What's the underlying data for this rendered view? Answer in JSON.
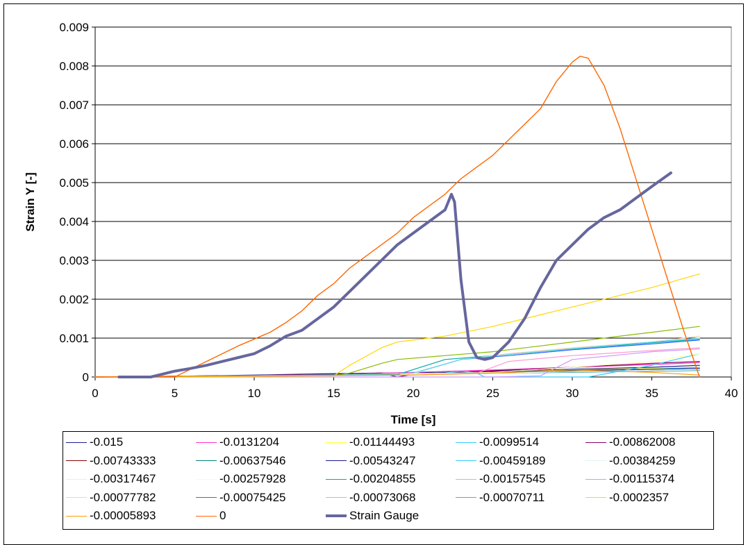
{
  "chart_data": {
    "type": "line",
    "title": "",
    "xlabel": "Time [s]",
    "ylabel": "Strain Y [-]",
    "xlim": [
      0,
      40
    ],
    "ylim": [
      0,
      0.009
    ],
    "x_ticks": [
      "0",
      "5",
      "10",
      "15",
      "20",
      "25",
      "30",
      "35",
      "40"
    ],
    "y_ticks": [
      "0",
      "0.001",
      "0.002",
      "0.003",
      "0.004",
      "0.005",
      "0.006",
      "0.007",
      "0.008",
      "0.009"
    ],
    "grid": "horizontal",
    "legend_position": "bottom",
    "series": [
      {
        "name": "-0.015",
        "color": "#1a1a8c",
        "width": 1.2,
        "points": [
          [
            0,
            0
          ],
          [
            5,
            2e-05
          ],
          [
            10,
            5e-05
          ],
          [
            14,
            8e-05
          ],
          [
            18,
            0.0001
          ],
          [
            22,
            0.00012
          ],
          [
            25,
            0.00015
          ],
          [
            30,
            0.0002
          ],
          [
            35,
            0.00025
          ],
          [
            38,
            0.0003
          ]
        ]
      },
      {
        "name": "-0.0131204",
        "color": "#ff33cc",
        "width": 1.2,
        "points": [
          [
            0,
            0
          ],
          [
            10,
            4e-05
          ],
          [
            16,
            8e-05
          ],
          [
            20,
            0.00012
          ],
          [
            25,
            0.00018
          ],
          [
            30,
            0.00025
          ],
          [
            35,
            0.00032
          ],
          [
            38,
            0.00037
          ]
        ]
      },
      {
        "name": "-0.01144493",
        "color": "#ffff33",
        "width": 1.2,
        "points": [
          [
            0,
            0
          ],
          [
            10,
            3e-05
          ],
          [
            16,
            6e-05
          ],
          [
            20,
            9e-05
          ],
          [
            25,
            0.00013
          ],
          [
            30,
            0.00018
          ],
          [
            35,
            0.00022
          ],
          [
            38,
            0.00025
          ]
        ]
      },
      {
        "name": "-0.0099514",
        "color": "#33ccff",
        "width": 1.2,
        "points": [
          [
            0,
            0
          ],
          [
            10,
            3e-05
          ],
          [
            16,
            6e-05
          ],
          [
            20,
            9e-05
          ],
          [
            25,
            0.00012
          ],
          [
            30,
            0.00015
          ],
          [
            35,
            0.0002
          ],
          [
            38,
            0.00025
          ]
        ]
      },
      {
        "name": "-0.00862008",
        "color": "#880066",
        "width": 1.2,
        "points": [
          [
            0,
            0
          ],
          [
            10,
            4e-05
          ],
          [
            14,
            7e-05
          ],
          [
            17,
            9e-05
          ],
          [
            18,
            0.0001
          ],
          [
            19,
            0
          ],
          [
            20,
            7e-05
          ],
          [
            25,
            0.00016
          ],
          [
            30,
            0.00025
          ],
          [
            35,
            0.00035
          ],
          [
            38,
            0.0004
          ]
        ]
      },
      {
        "name": "-0.00743333",
        "color": "#880000",
        "width": 1.2,
        "points": [
          [
            0,
            0
          ],
          [
            10,
            3e-05
          ],
          [
            15,
            5e-05
          ],
          [
            20,
            7e-05
          ],
          [
            25,
            0.0001
          ],
          [
            30,
            0.00013
          ],
          [
            35,
            0.00016
          ],
          [
            38,
            0.00018
          ]
        ]
      },
      {
        "name": "-0.00637546",
        "color": "#008080",
        "width": 1.2,
        "points": [
          [
            0,
            0
          ],
          [
            10,
            3e-05
          ],
          [
            15,
            6e-05
          ],
          [
            20,
            8e-05
          ],
          [
            25,
            0.0001
          ],
          [
            30,
            0.00012
          ],
          [
            35,
            0.00015
          ],
          [
            38,
            0.00017
          ]
        ]
      },
      {
        "name": "-0.00543247",
        "color": "#1a1a8c",
        "width": 1.2,
        "points": [
          [
            0,
            0
          ],
          [
            10,
            2e-05
          ],
          [
            15,
            5e-05
          ],
          [
            18,
            7e-05
          ],
          [
            22,
            0.0001
          ],
          [
            25,
            0.00013
          ],
          [
            30,
            0.00017
          ],
          [
            35,
            0.0002
          ],
          [
            38,
            0.00022
          ]
        ]
      },
      {
        "name": "-0.00459189",
        "color": "#33ccff",
        "width": 1.2,
        "points": [
          [
            0,
            0
          ],
          [
            15,
            5e-05
          ],
          [
            20,
            8e-05
          ],
          [
            22,
            0.0001
          ],
          [
            23,
            0.00015
          ],
          [
            24,
            0.0001
          ],
          [
            24.5,
            0
          ],
          [
            31,
            0
          ],
          [
            35,
            0.0003
          ],
          [
            38,
            0.0006
          ]
        ]
      },
      {
        "name": "-0.00384259",
        "color": "#dff4f4",
        "width": 1.2,
        "points": [
          [
            0,
            0
          ],
          [
            15,
            4e-05
          ],
          [
            20,
            7e-05
          ],
          [
            25,
            0.0001
          ],
          [
            30,
            0.00013
          ],
          [
            35,
            0.00016
          ],
          [
            38,
            0.00018
          ]
        ]
      },
      {
        "name": "-0.00317467",
        "color": "#dff4e0",
        "width": 1.2,
        "points": [
          [
            0,
            0
          ],
          [
            15,
            5e-05
          ],
          [
            20,
            8e-05
          ],
          [
            23,
            0.00045
          ],
          [
            26,
            0.00055
          ],
          [
            30,
            0.00075
          ],
          [
            35,
            0.0009
          ],
          [
            38,
            0.001
          ]
        ]
      },
      {
        "name": "-0.00257928",
        "color": "#ffffb0",
        "width": 1.2,
        "points": [
          [
            0,
            0
          ],
          [
            15,
            5e-05
          ],
          [
            20,
            8e-05
          ],
          [
            25,
            0.00012
          ],
          [
            30,
            0.00025
          ],
          [
            35,
            0.0004
          ],
          [
            38,
            0.0006
          ]
        ]
      },
      {
        "name": "-0.00204855",
        "color": "#00aaaa",
        "width": 1.2,
        "points": [
          [
            0,
            0
          ],
          [
            15,
            5e-05
          ],
          [
            19,
            6e-05
          ],
          [
            22,
            0.00045
          ],
          [
            25,
            0.00055
          ],
          [
            30,
            0.00072
          ],
          [
            35,
            0.00088
          ],
          [
            38,
            0.00097
          ]
        ]
      },
      {
        "name": "-0.00157545",
        "color": "#ff99cc",
        "width": 1.2,
        "points": [
          [
            0,
            0
          ],
          [
            20,
            5e-05
          ],
          [
            24,
            0.0001
          ],
          [
            26,
            0.0004
          ],
          [
            30,
            0.00055
          ],
          [
            35,
            0.00068
          ],
          [
            38,
            0.00075
          ]
        ]
      },
      {
        "name": "-0.00115374",
        "color": "#cc99ff",
        "width": 1.2,
        "points": [
          [
            0,
            0
          ],
          [
            25,
            0
          ],
          [
            28,
            3e-05
          ],
          [
            30,
            0.00045
          ],
          [
            35,
            0.00065
          ],
          [
            38,
            0.00072
          ]
        ]
      },
      {
        "name": "-0.00077782",
        "color": "#ffccaa",
        "width": 1.2,
        "points": [
          [
            0,
            0
          ],
          [
            15,
            5e-05
          ],
          [
            20,
            0.0001
          ],
          [
            23,
            0.00045
          ],
          [
            26,
            0.0006
          ],
          [
            30,
            0.00075
          ],
          [
            35,
            0.0009
          ],
          [
            38,
            0.00105
          ]
        ]
      },
      {
        "name": "-0.00075425",
        "color": "#3366ff",
        "width": 1.2,
        "points": [
          [
            0,
            0
          ],
          [
            15,
            5e-05
          ],
          [
            20,
            0.0001
          ],
          [
            23,
            0.00045
          ],
          [
            26,
            0.00055
          ],
          [
            30,
            0.0007
          ],
          [
            35,
            0.00085
          ],
          [
            38,
            0.00095
          ]
        ]
      },
      {
        "name": "-0.00073068",
        "color": "#66ddee",
        "width": 1.2,
        "points": [
          [
            0,
            0
          ],
          [
            15,
            5e-05
          ],
          [
            20,
            0.0001
          ],
          [
            23,
            0.00045
          ],
          [
            26,
            0.00058
          ],
          [
            30,
            0.00073
          ],
          [
            35,
            0.0009
          ],
          [
            38,
            0.001
          ]
        ]
      },
      {
        "name": "-0.00070711",
        "color": "#88bb00",
        "width": 1.2,
        "points": [
          [
            0,
            0
          ],
          [
            15,
            3e-05
          ],
          [
            16,
            0.0001
          ],
          [
            18,
            0.00035
          ],
          [
            19,
            0.00045
          ],
          [
            22,
            0.00055
          ],
          [
            25,
            0.00065
          ],
          [
            30,
            0.0009
          ],
          [
            35,
            0.00115
          ],
          [
            38,
            0.0013
          ]
        ]
      },
      {
        "name": "-0.0002357",
        "color": "#ffd700",
        "width": 1.2,
        "points": [
          [
            0,
            0
          ],
          [
            15,
            3e-05
          ],
          [
            16,
            0.0003
          ],
          [
            18,
            0.00075
          ],
          [
            19,
            0.0009
          ],
          [
            22,
            0.00105
          ],
          [
            25,
            0.0013
          ],
          [
            30,
            0.0018
          ],
          [
            35,
            0.0023
          ],
          [
            38,
            0.00265
          ]
        ]
      },
      {
        "name": "-0.00005893",
        "color": "#ff9900",
        "width": 1.2,
        "points": [
          [
            0,
            0
          ],
          [
            10,
            3e-05
          ],
          [
            20,
            5e-05
          ],
          [
            25,
            0.0001
          ],
          [
            30,
            0.00018
          ],
          [
            35,
            0.00012
          ],
          [
            38,
            5e-05
          ]
        ]
      },
      {
        "name": "0",
        "color": "#ff6600",
        "width": 1.4,
        "points": [
          [
            0,
            0
          ],
          [
            5,
            0
          ],
          [
            7,
            0.0004
          ],
          [
            9,
            0.0008
          ],
          [
            11,
            0.00115
          ],
          [
            12,
            0.0014
          ],
          [
            13,
            0.0017
          ],
          [
            14,
            0.0021
          ],
          [
            15,
            0.0024
          ],
          [
            16,
            0.0028
          ],
          [
            17,
            0.0031
          ],
          [
            18,
            0.0034
          ],
          [
            19,
            0.0037
          ],
          [
            20,
            0.0041
          ],
          [
            21,
            0.0044
          ],
          [
            22,
            0.0047
          ],
          [
            23,
            0.0051
          ],
          [
            24,
            0.0054
          ],
          [
            25,
            0.0057
          ],
          [
            26,
            0.0061
          ],
          [
            27,
            0.0065
          ],
          [
            28,
            0.0069
          ],
          [
            29,
            0.0076
          ],
          [
            30,
            0.0081
          ],
          [
            30.5,
            0.00825
          ],
          [
            31,
            0.0082
          ],
          [
            32,
            0.0075
          ],
          [
            33,
            0.0064
          ],
          [
            34,
            0.0051
          ],
          [
            35,
            0.0038
          ],
          [
            36,
            0.0025
          ],
          [
            37,
            0.0012
          ],
          [
            38,
            0
          ]
        ]
      },
      {
        "name": "Strain Gauge",
        "color": "#66669e",
        "width": 4,
        "points": [
          [
            1.5,
            0
          ],
          [
            3.5,
            0
          ],
          [
            4,
            5e-05
          ],
          [
            5,
            0.00015
          ],
          [
            6,
            0.00022
          ],
          [
            7,
            0.0003
          ],
          [
            8,
            0.0004
          ],
          [
            9,
            0.0005
          ],
          [
            10,
            0.0006
          ],
          [
            11,
            0.0008
          ],
          [
            12,
            0.00105
          ],
          [
            13,
            0.0012
          ],
          [
            14,
            0.0015
          ],
          [
            15,
            0.0018
          ],
          [
            16,
            0.0022
          ],
          [
            17,
            0.0026
          ],
          [
            18,
            0.003
          ],
          [
            19,
            0.0034
          ],
          [
            20,
            0.0037
          ],
          [
            21,
            0.004
          ],
          [
            22,
            0.0043
          ],
          [
            22.4,
            0.0047
          ],
          [
            22.6,
            0.0045
          ],
          [
            23,
            0.0025
          ],
          [
            23.5,
            0.0009
          ],
          [
            24,
            0.0005
          ],
          [
            24.5,
            0.00045
          ],
          [
            25,
            0.0005
          ],
          [
            26,
            0.0009
          ],
          [
            27,
            0.0015
          ],
          [
            28,
            0.0023
          ],
          [
            29,
            0.003
          ],
          [
            30,
            0.0034
          ],
          [
            31,
            0.0038
          ],
          [
            32,
            0.0041
          ],
          [
            33,
            0.0043
          ],
          [
            34,
            0.0046
          ],
          [
            35,
            0.0049
          ],
          [
            36.2,
            0.00525
          ]
        ]
      }
    ]
  }
}
